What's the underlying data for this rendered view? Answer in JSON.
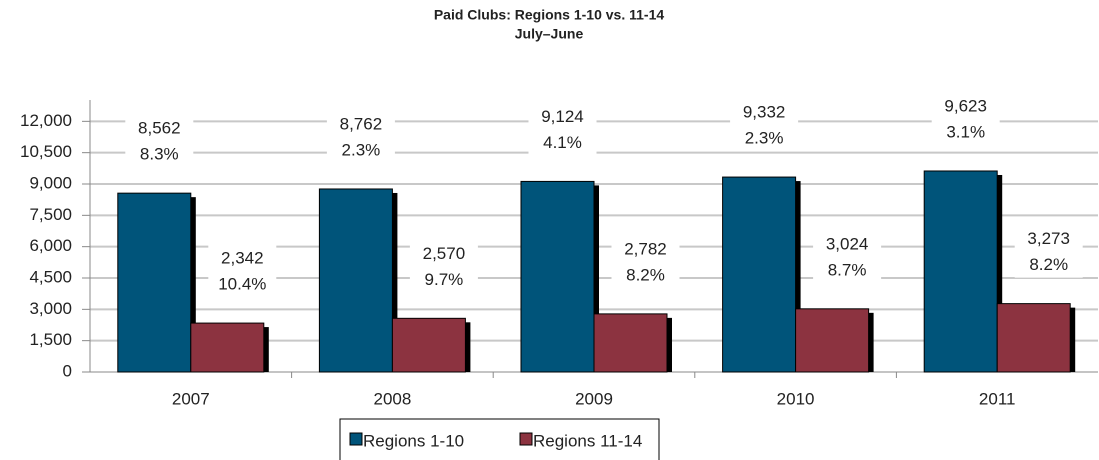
{
  "chart_data": {
    "type": "bar",
    "title": "Paid Clubs: Regions 1-10 vs. 11-14",
    "subtitle": "July–June",
    "categories": [
      "2007",
      "2008",
      "2009",
      "2010",
      "2011"
    ],
    "series": [
      {
        "name": "Regions 1-10",
        "color": "#00547a",
        "values": [
          8562,
          8762,
          9124,
          9332,
          9623
        ],
        "value_labels": [
          "8,562",
          "8,762",
          "9,124",
          "9,332",
          "9,623"
        ],
        "percent_labels": [
          "8.3%",
          "2.3%",
          "4.1%",
          "2.3%",
          "3.1%"
        ]
      },
      {
        "name": "Regions 11-14",
        "color": "#8c3340",
        "values": [
          2342,
          2570,
          2782,
          3024,
          3273
        ],
        "value_labels": [
          "2,342",
          "2,570",
          "2,782",
          "3,024",
          "3,273"
        ],
        "percent_labels": [
          "10.4%",
          "9.7%",
          "8.2%",
          "8.7%",
          "8.2%"
        ]
      }
    ],
    "ylim": [
      0,
      13500
    ],
    "yticks": [
      0,
      {
        "value": 1500,
        "label": "1,500"
      },
      {
        "value": 3000,
        "label": "3,000"
      },
      {
        "value": 4500,
        "label": "4,500"
      },
      {
        "value": 6000,
        "label": "6,000"
      },
      {
        "value": 7500,
        "label": "7,500"
      },
      {
        "value": 9000,
        "label": "9,000"
      },
      {
        "value": 10500,
        "label": "10,500"
      },
      {
        "value": 12000,
        "label": "12,000"
      }
    ],
    "grid": true,
    "legend": "bottom"
  }
}
